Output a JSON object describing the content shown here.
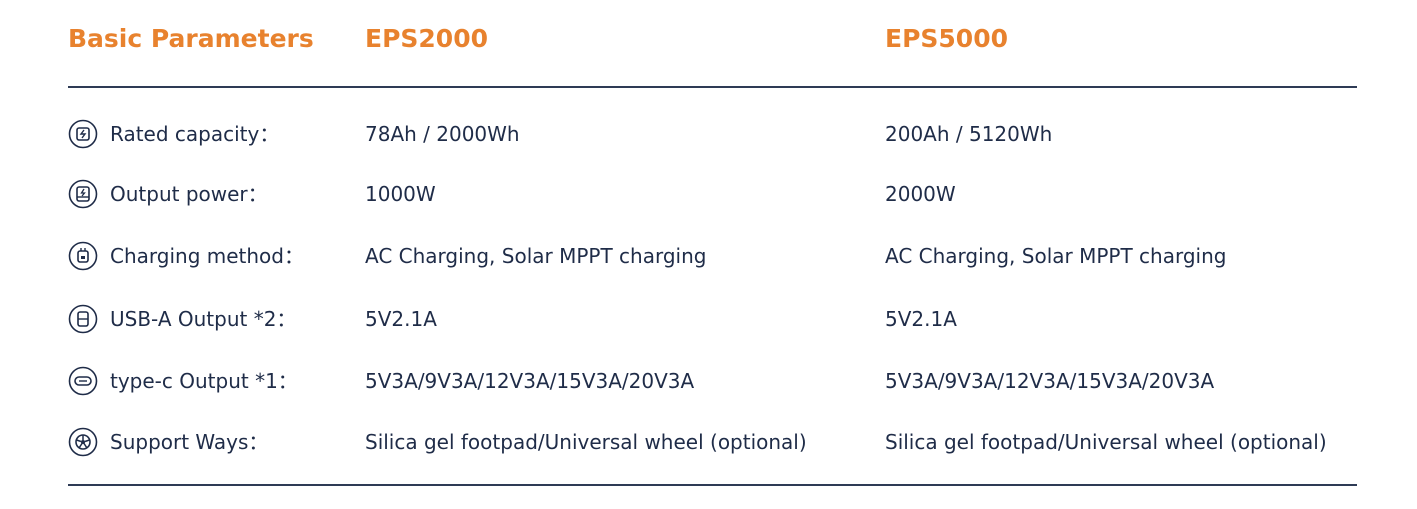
{
  "header": {
    "title": "Basic Parameters",
    "columns": [
      "EPS2000",
      "EPS5000"
    ]
  },
  "table": {
    "rows": [
      [
        "Rated capacity：",
        "78Ah / 2000Wh",
        "200Ah / 5120Wh"
      ],
      [
        "Output power：",
        "1000W",
        "2000W"
      ],
      [
        "Charging method：",
        "AC Charging, Solar MPPT charging",
        "AC Charging, Solar MPPT charging"
      ],
      [
        "USB-A Output *2：",
        "5V2.1A",
        "5V2.1A"
      ],
      [
        "type-c Output *1：",
        "5V3A/9V3A/12V3A/15V3A/20V3A",
        "5V3A/9V3A/12V3A/15V3A/20V3A"
      ],
      [
        "Support Ways：",
        "Silica gel footpad/Universal wheel (optional)",
        "Silica gel footpad/Universal wheel (optional)"
      ]
    ]
  }
}
